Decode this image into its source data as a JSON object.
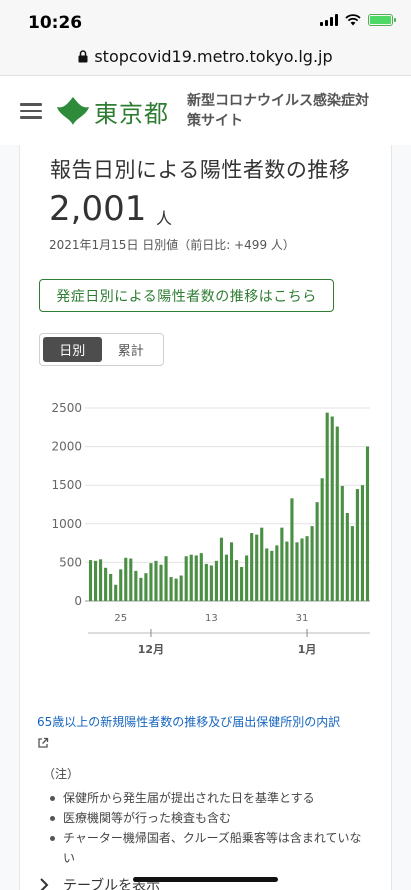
{
  "status": {
    "time": "10:26"
  },
  "browser": {
    "url": "stopcovid19.metro.tokyo.lg.jp"
  },
  "header": {
    "logo_text": "東京都",
    "site_title": "新型コロナウイルス感染症対策サイト"
  },
  "card": {
    "title": "報告日別による陽性者数の推移",
    "value": "2,001",
    "unit": "人",
    "date_line": "2021年1月15日 日別値（前日比: +499 人）",
    "onset_link": "発症日別による陽性者数の推移はこちら",
    "toggle": {
      "daily": "日別",
      "cumulative": "累計"
    }
  },
  "chart_data": {
    "type": "bar",
    "y_ticks": [
      "2500",
      "2000",
      "1500",
      "1000",
      "500",
      "0"
    ],
    "ylim": [
      0,
      2500
    ],
    "x_day_labels": [
      {
        "label": "25",
        "index": 6
      },
      {
        "label": "13",
        "index": 24
      },
      {
        "label": "31",
        "index": 42
      }
    ],
    "x_month_labels": [
      {
        "label": "12月",
        "index": 12
      },
      {
        "label": "1月",
        "index": 43
      }
    ],
    "bar_color": "#4a8f43",
    "values": [
      530,
      520,
      540,
      430,
      350,
      210,
      410,
      560,
      550,
      390,
      300,
      360,
      490,
      520,
      470,
      580,
      310,
      290,
      330,
      580,
      600,
      590,
      620,
      480,
      460,
      520,
      820,
      600,
      760,
      530,
      440,
      590,
      880,
      860,
      950,
      680,
      650,
      720,
      950,
      770,
      1330,
      760,
      810,
      840,
      970,
      1280,
      1590,
      2440,
      2390,
      2260,
      1490,
      1140,
      970,
      1450,
      1500,
      2001
    ]
  },
  "links": {
    "breakdown": "65歳以上の新規陽性者数の推移及び届出保健所別の内訳"
  },
  "notes": {
    "heading": "（注）",
    "items": [
      "保健所から発生届が提出された日を基準とする",
      "医療機関等が行った検査も含む",
      "チャーター機帰国者、クルーズ船乗客等は含まれていない"
    ]
  },
  "table_toggle": {
    "label": "テーブルを表示"
  }
}
